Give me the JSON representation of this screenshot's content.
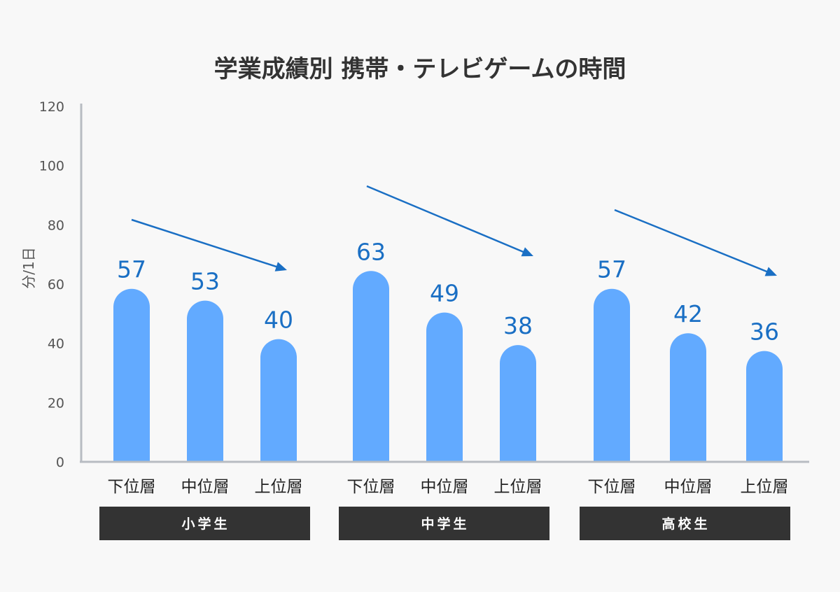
{
  "chart_data": {
    "type": "bar",
    "title": "学業成績別 携帯・テレビゲームの時間",
    "ylabel": "分/1日",
    "xlabel": "",
    "ylim": [
      0,
      120
    ],
    "yticks": [
      0,
      20,
      40,
      60,
      80,
      100,
      120
    ],
    "grid": false,
    "groups": [
      {
        "name": "小学生",
        "categories": [
          "下位層",
          "中位層",
          "上位層"
        ],
        "values": [
          57,
          53,
          40
        ]
      },
      {
        "name": "中学生",
        "categories": [
          "下位層",
          "中位層",
          "上位層"
        ],
        "values": [
          63,
          49,
          38
        ]
      },
      {
        "name": "高校生",
        "categories": [
          "下位層",
          "中位層",
          "上位層"
        ],
        "values": [
          57,
          42,
          36
        ]
      }
    ],
    "annotations": [
      "decreasing-trend-arrow per group"
    ],
    "colors": {
      "bar": "#62aaff",
      "value_label": "#1a6fc4",
      "arrow": "#1a6fc4",
      "group_box": "#333333",
      "axis": "#b8bcc2"
    }
  }
}
